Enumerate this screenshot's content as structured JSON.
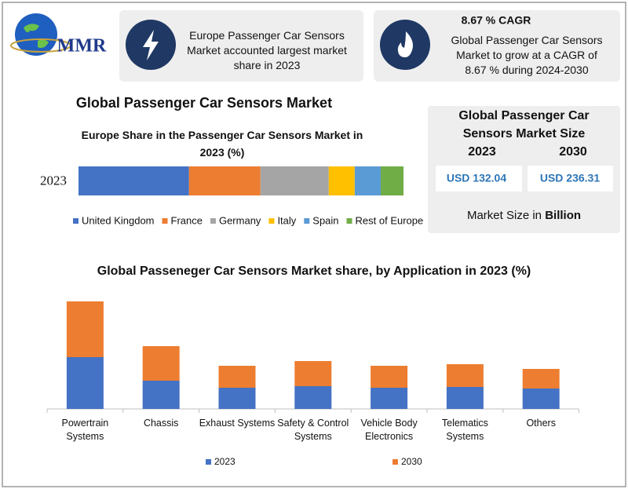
{
  "header": {
    "logo": "MMR",
    "box1": {
      "text": "Europe Passenger Car Sensors Market accounted largest market share in 2023"
    },
    "box2": {
      "title": "8.67 % CAGR",
      "text": "Global Passenger Car Sensors Market to grow at a CAGR of 8.67 % during 2024-2030"
    }
  },
  "section_title": "Global Passenger Car Sensors Market",
  "market_size": {
    "title": "Global Passenger Car Sensors Market Size",
    "years": [
      "2023",
      "2030"
    ],
    "values": [
      "USD 132.04",
      "USD 236.31"
    ],
    "note": "Market Size in",
    "note_unit": "Billion"
  },
  "chart_data": [
    {
      "type": "bar",
      "orientation": "horizontal",
      "stacked": true,
      "title": "Europe Share in the Passenger Car Sensors Market in 2023 (%)",
      "categories": [
        "2023"
      ],
      "series": [
        {
          "name": "United Kingdom",
          "color": "#4472c4",
          "values": [
            34
          ]
        },
        {
          "name": "France",
          "color": "#ed7d31",
          "values": [
            22
          ]
        },
        {
          "name": "Germany",
          "color": "#a5a5a5",
          "values": [
            21
          ]
        },
        {
          "name": "Italy",
          "color": "#ffc000",
          "values": [
            8
          ]
        },
        {
          "name": "Spain",
          "color": "#5b9bd5",
          "values": [
            8
          ]
        },
        {
          "name": "Rest of Europe",
          "color": "#70ad47",
          "values": [
            7
          ]
        }
      ]
    },
    {
      "type": "bar",
      "orientation": "vertical",
      "stacked": true,
      "title": "Global Passeneger Car Sensors Market share, by Application in 2023  (%)",
      "categories": [
        "Powertrain Systems",
        "Chassis",
        "Exhaust Systems",
        "Safety & Control Systems",
        "Vehicle Body Electronics",
        "Telematics Systems",
        "Others"
      ],
      "series": [
        {
          "name": "2023",
          "color": "#4472c4",
          "values": [
            66,
            36,
            27,
            29,
            27,
            28,
            26
          ]
        },
        {
          "name": "2030",
          "color": "#ed7d31",
          "values": [
            71,
            44,
            28,
            32,
            28,
            29,
            25
          ]
        }
      ]
    }
  ]
}
